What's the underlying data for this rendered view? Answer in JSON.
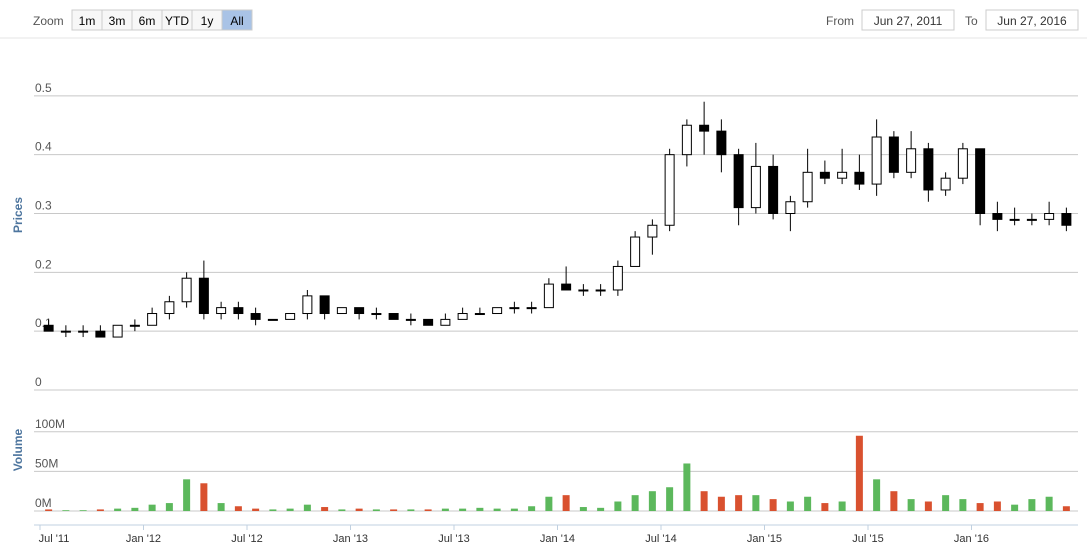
{
  "range_selector": {
    "zoom_label": "Zoom",
    "buttons": [
      "1m",
      "3m",
      "6m",
      "YTD",
      "1y",
      "All"
    ],
    "selected": 5,
    "from_label": "From",
    "from": "Jun 27, 2011",
    "to_label": "To",
    "to": "Jun 27, 2016"
  },
  "chart_data": [
    {
      "type": "candlestick",
      "y_label": "Prices",
      "up_color": "#ffffff",
      "down_color": "#000000",
      "line_color": "#000000",
      "x": [
        0.5,
        1.5,
        2.5,
        3.5,
        4.5,
        5.5,
        6.5,
        7.5,
        8.5,
        9.5,
        10.5,
        11.5,
        12.5,
        13.5,
        14.5,
        15.5,
        16.5,
        17.5,
        18.5,
        19.5,
        20.5,
        21.5,
        22.5,
        23.5,
        24.5,
        25.5,
        26.5,
        27.5,
        28.5,
        29.5,
        30.5,
        31.5,
        32.5,
        33.5,
        34.5,
        35.5,
        36.5,
        37.5,
        38.5,
        39.5,
        40.5,
        41.5,
        42.5,
        43.5,
        44.5,
        45.5,
        46.5,
        47.5,
        48.5,
        49.5,
        50.5,
        51.5,
        52.5,
        53.5,
        54.5,
        55.5,
        56.5,
        57.5,
        58.5,
        59.5
      ],
      "open": [
        0.11,
        0.1,
        0.1,
        0.1,
        0.09,
        0.11,
        0.11,
        0.13,
        0.15,
        0.19,
        0.13,
        0.14,
        0.13,
        0.12,
        0.12,
        0.13,
        0.16,
        0.13,
        0.14,
        0.13,
        0.13,
        0.12,
        0.12,
        0.11,
        0.12,
        0.13,
        0.13,
        0.14,
        0.14,
        0.14,
        0.18,
        0.17,
        0.17,
        0.17,
        0.21,
        0.26,
        0.28,
        0.4,
        0.45,
        0.44,
        0.4,
        0.31,
        0.38,
        0.3,
        0.32,
        0.37,
        0.36,
        0.37,
        0.35,
        0.43,
        0.37,
        0.41,
        0.34,
        0.36,
        0.41,
        0.3,
        0.29,
        0.29,
        0.29,
        0.3
      ],
      "high": [
        0.12,
        0.11,
        0.11,
        0.11,
        0.11,
        0.12,
        0.14,
        0.16,
        0.2,
        0.22,
        0.15,
        0.15,
        0.14,
        0.12,
        0.13,
        0.17,
        0.16,
        0.14,
        0.14,
        0.14,
        0.13,
        0.13,
        0.12,
        0.13,
        0.14,
        0.14,
        0.14,
        0.15,
        0.15,
        0.19,
        0.21,
        0.18,
        0.18,
        0.22,
        0.27,
        0.29,
        0.41,
        0.46,
        0.49,
        0.46,
        0.41,
        0.42,
        0.4,
        0.33,
        0.41,
        0.39,
        0.41,
        0.4,
        0.46,
        0.44,
        0.44,
        0.42,
        0.37,
        0.42,
        0.41,
        0.32,
        0.31,
        0.3,
        0.32,
        0.31
      ],
      "low": [
        0.1,
        0.09,
        0.09,
        0.09,
        0.09,
        0.1,
        0.11,
        0.12,
        0.14,
        0.12,
        0.12,
        0.12,
        0.11,
        0.12,
        0.12,
        0.12,
        0.12,
        0.13,
        0.12,
        0.12,
        0.12,
        0.11,
        0.11,
        0.11,
        0.12,
        0.13,
        0.13,
        0.13,
        0.13,
        0.14,
        0.17,
        0.16,
        0.16,
        0.16,
        0.21,
        0.23,
        0.27,
        0.38,
        0.4,
        0.37,
        0.28,
        0.3,
        0.29,
        0.27,
        0.31,
        0.35,
        0.35,
        0.34,
        0.33,
        0.36,
        0.36,
        0.32,
        0.33,
        0.35,
        0.28,
        0.27,
        0.28,
        0.28,
        0.28,
        0.27
      ],
      "close": [
        0.1,
        0.1,
        0.1,
        0.09,
        0.11,
        0.11,
        0.13,
        0.15,
        0.19,
        0.13,
        0.14,
        0.13,
        0.12,
        0.12,
        0.13,
        0.16,
        0.13,
        0.14,
        0.13,
        0.13,
        0.12,
        0.12,
        0.11,
        0.12,
        0.13,
        0.13,
        0.14,
        0.14,
        0.14,
        0.18,
        0.17,
        0.17,
        0.17,
        0.21,
        0.26,
        0.28,
        0.4,
        0.45,
        0.44,
        0.4,
        0.31,
        0.38,
        0.3,
        0.32,
        0.37,
        0.36,
        0.37,
        0.35,
        0.43,
        0.37,
        0.41,
        0.34,
        0.36,
        0.41,
        0.3,
        0.29,
        0.29,
        0.29,
        0.3,
        0.28
      ],
      "xlim": [
        0,
        60
      ],
      "xticks": [
        {
          "value": 0,
          "label": "Jul '11"
        },
        {
          "value": 6,
          "label": "Jan '12"
        },
        {
          "value": 12,
          "label": "Jul '12"
        },
        {
          "value": 18,
          "label": "Jan '13"
        },
        {
          "value": 24,
          "label": "Jul '13"
        },
        {
          "value": 30,
          "label": "Jan '14"
        },
        {
          "value": 36,
          "label": "Jul '14"
        },
        {
          "value": 42,
          "label": "Jan '15"
        },
        {
          "value": 48,
          "label": "Jul '15"
        },
        {
          "value": 54,
          "label": "Jan '16"
        }
      ],
      "ylim": [
        0,
        0.6
      ],
      "yticks": [
        0,
        0.1,
        0.2,
        0.3,
        0.4,
        0.5
      ],
      "grid": true
    },
    {
      "type": "bar",
      "y_label": "Volume",
      "up_color": "#5cb85c",
      "down_color": "#d9512f",
      "values": [
        2,
        1,
        1,
        2,
        3,
        4,
        8,
        10,
        40,
        35,
        10,
        6,
        3,
        2,
        3,
        8,
        5,
        2,
        3,
        2,
        2,
        2,
        2,
        3,
        3,
        4,
        3,
        3,
        6,
        18,
        20,
        5,
        4,
        12,
        20,
        25,
        30,
        60,
        25,
        18,
        20,
        20,
        15,
        12,
        18,
        10,
        12,
        95,
        40,
        25,
        15,
        12,
        20,
        15,
        10,
        12,
        8,
        15,
        18,
        6
      ],
      "ylim": [
        0,
        125
      ],
      "yticks": [
        {
          "value": 0,
          "label": "0M"
        },
        {
          "value": 50,
          "label": "50M"
        },
        {
          "value": 100,
          "label": "100M"
        }
      ],
      "grid": true
    }
  ]
}
